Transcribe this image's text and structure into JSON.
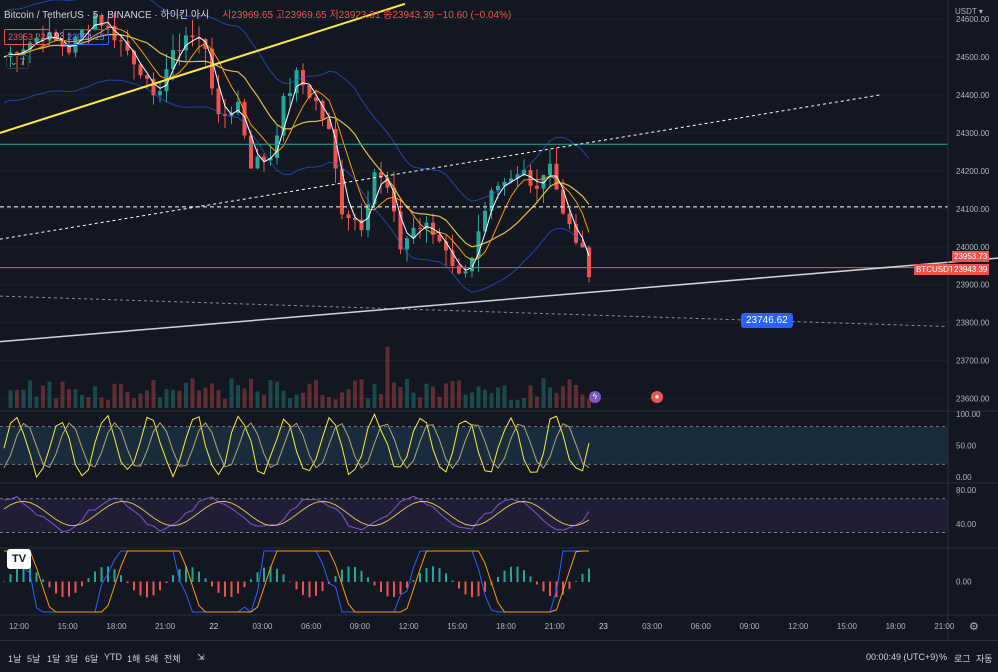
{
  "header": {
    "symbol": "Bitcoin / TetherUS · 5 · BINANCE · 하이킨 아시",
    "ohlc": "시23969.65 고23969.65 저23923.31 종23943.39 −10.60 (−0.04%)",
    "bid": "23953.22",
    "spread": "0.93",
    "ask": "23954.15",
    "indicator_toggle": "7",
    "currency": "USDT"
  },
  "price_tags": {
    "last": "23953.73",
    "symbol_tag": "BTCUSDT",
    "symbol_price": "23943.39",
    "callout": "23746.62"
  },
  "x_ticks": [
    "12:00",
    "15:00",
    "18:00",
    "21:00",
    "22",
    "03:00",
    "06:00",
    "09:00",
    "12:00",
    "15:00",
    "18:00",
    "21:00",
    "23",
    "03:00",
    "06:00",
    "09:00",
    "12:00",
    "15:00",
    "18:00",
    "21:00"
  ],
  "bottom_bar": {
    "ranges": [
      "1날",
      "5날",
      "1달",
      "3달",
      "6달",
      "YTD",
      "1해",
      "5해",
      "전체"
    ],
    "clock": "00:00:49 (UTC+9)",
    "percent": "%",
    "log": "로그",
    "auto": "자동"
  },
  "logo_text": "TV",
  "colors": {
    "bg": "#131722",
    "up": "#26a69a",
    "down": "#ef5350",
    "accent": "#2962ff"
  },
  "chart_data": [
    {
      "type": "candlestick",
      "pane": "price",
      "y_ticks": [
        24600,
        24500,
        24400,
        24300,
        24200,
        24100,
        24000,
        23900,
        23800,
        23700,
        23600
      ],
      "ylim": [
        23570,
        24650
      ],
      "horizontal_lines": [
        24270,
        24105,
        23945
      ],
      "close_path": [
        [
          0,
          24500
        ],
        [
          6,
          24560
        ],
        [
          10,
          24520
        ],
        [
          14,
          24610
        ],
        [
          18,
          24540
        ],
        [
          21,
          24470
        ],
        [
          23,
          24380
        ],
        [
          25,
          24470
        ],
        [
          28,
          24560
        ],
        [
          31,
          24530
        ],
        [
          33,
          24330
        ],
        [
          36,
          24380
        ],
        [
          38,
          24220
        ],
        [
          41,
          24240
        ],
        [
          43,
          24380
        ],
        [
          45,
          24450
        ],
        [
          48,
          24380
        ],
        [
          50,
          24300
        ],
        [
          52,
          24100
        ],
        [
          55,
          24060
        ],
        [
          57,
          24200
        ],
        [
          59,
          24150
        ],
        [
          61,
          24000
        ],
        [
          63,
          24050
        ],
        [
          65,
          24050
        ],
        [
          68,
          24000
        ],
        [
          70,
          23920
        ],
        [
          72,
          23980
        ],
        [
          75,
          24130
        ],
        [
          78,
          24170
        ],
        [
          80,
          24200
        ],
        [
          82,
          24160
        ],
        [
          84,
          24230
        ],
        [
          86,
          24080
        ],
        [
          88,
          24020
        ],
        [
          90,
          23940
        ]
      ],
      "xlabel": "",
      "ylabel": ""
    },
    {
      "type": "line",
      "pane": "stochastic_rsi",
      "y_ticks": [
        "100.00",
        "50.00",
        "0.00"
      ],
      "ylim": [
        0,
        100
      ],
      "bands": [
        80,
        20
      ],
      "series_count": 2
    },
    {
      "type": "line",
      "pane": "rsi",
      "y_ticks": [
        "80.00",
        "40.00"
      ],
      "ylim": [
        20,
        85
      ],
      "bands": [
        70,
        30
      ],
      "series_count": 2
    },
    {
      "type": "bar",
      "pane": "macd",
      "y_ticks": [
        "0.00"
      ],
      "ylim": [
        -1,
        1
      ]
    }
  ]
}
